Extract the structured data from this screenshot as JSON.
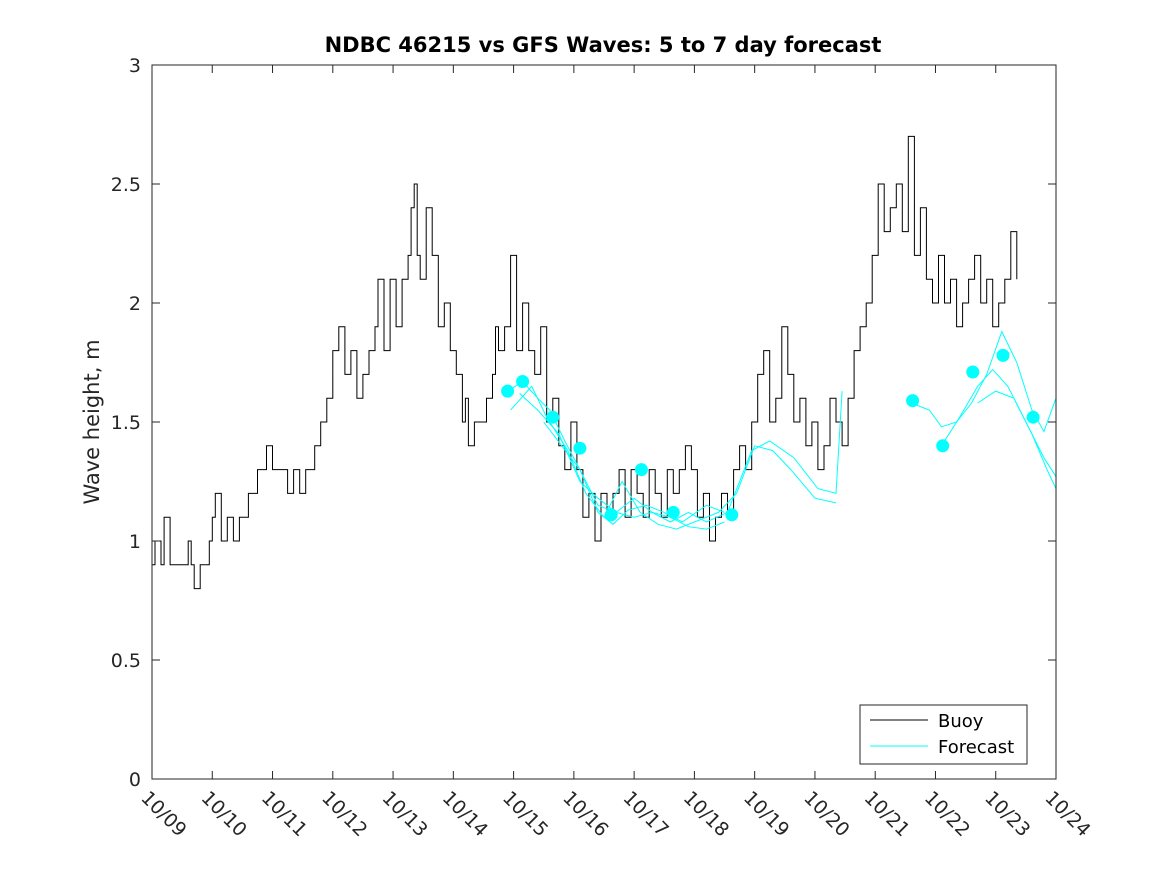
{
  "chart_data": {
    "type": "line",
    "title": "NDBC 46215 vs GFS Waves: 5 to 7 day forecast",
    "xlabel": "",
    "ylabel": "Wave height, m",
    "xlim": [
      0,
      15
    ],
    "ylim": [
      0,
      3
    ],
    "grid": false,
    "legend_position": "bottom-right",
    "x_ticks": [
      0,
      1,
      2,
      3,
      4,
      5,
      6,
      7,
      8,
      9,
      10,
      11,
      12,
      13,
      14,
      15
    ],
    "x_tick_labels": [
      "10/09",
      "10/10",
      "10/11",
      "10/12",
      "10/13",
      "10/14",
      "10/15",
      "10/16",
      "10/17",
      "10/18",
      "10/19",
      "10/20",
      "10/21",
      "10/22",
      "10/23",
      "10/24"
    ],
    "y_ticks": [
      0,
      0.5,
      1,
      1.5,
      2,
      2.5,
      3
    ],
    "y_tick_labels": [
      "0",
      "0.5",
      "1",
      "1.5",
      "2",
      "2.5",
      "3"
    ],
    "series": [
      {
        "name": "Buoy",
        "color": "#000000",
        "style": "step-line",
        "points": [
          [
            0.0,
            0.9
          ],
          [
            0.05,
            1.0
          ],
          [
            0.15,
            0.9
          ],
          [
            0.2,
            1.1
          ],
          [
            0.3,
            0.9
          ],
          [
            0.4,
            0.9
          ],
          [
            0.55,
            0.9
          ],
          [
            0.6,
            1.0
          ],
          [
            0.65,
            0.9
          ],
          [
            0.7,
            0.8
          ],
          [
            0.8,
            0.9
          ],
          [
            0.95,
            1.0
          ],
          [
            1.0,
            1.1
          ],
          [
            1.05,
            1.2
          ],
          [
            1.15,
            1.0
          ],
          [
            1.25,
            1.1
          ],
          [
            1.35,
            1.0
          ],
          [
            1.45,
            1.1
          ],
          [
            1.6,
            1.2
          ],
          [
            1.75,
            1.3
          ],
          [
            1.9,
            1.4
          ],
          [
            2.0,
            1.3
          ],
          [
            2.15,
            1.3
          ],
          [
            2.25,
            1.2
          ],
          [
            2.35,
            1.3
          ],
          [
            2.45,
            1.2
          ],
          [
            2.55,
            1.3
          ],
          [
            2.7,
            1.4
          ],
          [
            2.8,
            1.5
          ],
          [
            2.9,
            1.6
          ],
          [
            3.0,
            1.8
          ],
          [
            3.1,
            1.9
          ],
          [
            3.2,
            1.7
          ],
          [
            3.3,
            1.8
          ],
          [
            3.4,
            1.6
          ],
          [
            3.5,
            1.7
          ],
          [
            3.6,
            1.8
          ],
          [
            3.7,
            1.9
          ],
          [
            3.75,
            2.1
          ],
          [
            3.85,
            1.8
          ],
          [
            3.95,
            2.1
          ],
          [
            4.05,
            1.9
          ],
          [
            4.15,
            2.1
          ],
          [
            4.25,
            2.2
          ],
          [
            4.3,
            2.4
          ],
          [
            4.35,
            2.5
          ],
          [
            4.4,
            2.2
          ],
          [
            4.45,
            2.1
          ],
          [
            4.55,
            2.4
          ],
          [
            4.65,
            2.2
          ],
          [
            4.75,
            1.9
          ],
          [
            4.85,
            2.0
          ],
          [
            4.95,
            1.8
          ],
          [
            5.05,
            1.7
          ],
          [
            5.15,
            1.5
          ],
          [
            5.2,
            1.6
          ],
          [
            5.25,
            1.4
          ],
          [
            5.35,
            1.5
          ],
          [
            5.45,
            1.5
          ],
          [
            5.55,
            1.6
          ],
          [
            5.65,
            1.7
          ],
          [
            5.7,
            1.9
          ],
          [
            5.75,
            1.8
          ],
          [
            5.85,
            1.9
          ],
          [
            5.95,
            2.2
          ],
          [
            6.05,
            1.8
          ],
          [
            6.15,
            2.0
          ],
          [
            6.25,
            1.8
          ],
          [
            6.35,
            1.7
          ],
          [
            6.45,
            1.9
          ],
          [
            6.55,
            1.5
          ],
          [
            6.65,
            1.6
          ],
          [
            6.75,
            1.4
          ],
          [
            6.85,
            1.3
          ],
          [
            6.95,
            1.5
          ],
          [
            7.05,
            1.3
          ],
          [
            7.15,
            1.1
          ],
          [
            7.25,
            1.2
          ],
          [
            7.35,
            1.0
          ],
          [
            7.45,
            1.2
          ],
          [
            7.55,
            1.1
          ],
          [
            7.65,
            1.2
          ],
          [
            7.75,
            1.3
          ],
          [
            7.85,
            1.1
          ],
          [
            7.95,
            1.3
          ],
          [
            8.05,
            1.2
          ],
          [
            8.15,
            1.1
          ],
          [
            8.25,
            1.3
          ],
          [
            8.35,
            1.2
          ],
          [
            8.45,
            1.1
          ],
          [
            8.55,
            1.3
          ],
          [
            8.65,
            1.2
          ],
          [
            8.75,
            1.3
          ],
          [
            8.85,
            1.4
          ],
          [
            8.95,
            1.3
          ],
          [
            9.05,
            1.1
          ],
          [
            9.15,
            1.2
          ],
          [
            9.25,
            1.0
          ],
          [
            9.35,
            1.1
          ],
          [
            9.45,
            1.2
          ],
          [
            9.55,
            1.1
          ],
          [
            9.65,
            1.3
          ],
          [
            9.75,
            1.4
          ],
          [
            9.85,
            1.3
          ],
          [
            9.95,
            1.5
          ],
          [
            10.05,
            1.7
          ],
          [
            10.15,
            1.8
          ],
          [
            10.25,
            1.5
          ],
          [
            10.35,
            1.6
          ],
          [
            10.45,
            1.9
          ],
          [
            10.55,
            1.7
          ],
          [
            10.65,
            1.5
          ],
          [
            10.75,
            1.6
          ],
          [
            10.85,
            1.4
          ],
          [
            10.95,
            1.5
          ],
          [
            11.05,
            1.3
          ],
          [
            11.15,
            1.4
          ],
          [
            11.25,
            1.6
          ],
          [
            11.35,
            1.5
          ],
          [
            11.45,
            1.4
          ],
          [
            11.55,
            1.6
          ],
          [
            11.65,
            1.8
          ],
          [
            11.75,
            1.9
          ],
          [
            11.85,
            2.0
          ],
          [
            11.95,
            2.2
          ],
          [
            12.05,
            2.5
          ],
          [
            12.15,
            2.3
          ],
          [
            12.25,
            2.4
          ],
          [
            12.35,
            2.5
          ],
          [
            12.45,
            2.3
          ],
          [
            12.55,
            2.7
          ],
          [
            12.65,
            2.2
          ],
          [
            12.75,
            2.4
          ],
          [
            12.85,
            2.1
          ],
          [
            12.95,
            2.0
          ],
          [
            13.05,
            2.2
          ],
          [
            13.15,
            2.0
          ],
          [
            13.25,
            2.1
          ],
          [
            13.35,
            1.9
          ],
          [
            13.45,
            2.0
          ],
          [
            13.55,
            2.1
          ],
          [
            13.65,
            2.2
          ],
          [
            13.75,
            2.0
          ],
          [
            13.85,
            2.1
          ],
          [
            13.95,
            1.9
          ],
          [
            14.05,
            2.0
          ],
          [
            14.15,
            2.1
          ],
          [
            14.25,
            2.3
          ],
          [
            14.35,
            2.1
          ]
        ]
      },
      {
        "name": "Forecast",
        "color": "#00ffff",
        "style": "lines",
        "lines": [
          [
            [
              5.9,
              1.63
            ],
            [
              6.15,
              1.67
            ],
            [
              6.4,
              1.6
            ],
            [
              6.6,
              1.55
            ],
            [
              6.85,
              1.42
            ],
            [
              7.1,
              1.3
            ],
            [
              7.4,
              1.12
            ],
            [
              7.65,
              1.07
            ],
            [
              7.9,
              1.13
            ],
            [
              8.2,
              1.15
            ],
            [
              8.5,
              1.12
            ],
            [
              8.8,
              1.08
            ],
            [
              9.2,
              1.15
            ],
            [
              9.5,
              1.12
            ]
          ],
          [
            [
              5.95,
              1.55
            ],
            [
              6.3,
              1.65
            ],
            [
              6.55,
              1.52
            ],
            [
              6.9,
              1.38
            ],
            [
              7.2,
              1.2
            ],
            [
              7.5,
              1.1
            ],
            [
              7.8,
              1.25
            ],
            [
              8.1,
              1.12
            ],
            [
              8.4,
              1.07
            ],
            [
              8.7,
              1.05
            ],
            [
              9.0,
              1.08
            ],
            [
              9.4,
              1.12
            ],
            [
              9.7,
              1.2
            ],
            [
              10.0,
              1.4
            ],
            [
              10.3,
              1.38
            ],
            [
              10.6,
              1.3
            ],
            [
              11.0,
              1.18
            ],
            [
              11.35,
              1.16
            ]
          ],
          [
            [
              6.1,
              1.62
            ],
            [
              6.4,
              1.55
            ],
            [
              6.75,
              1.45
            ],
            [
              7.1,
              1.25
            ],
            [
              7.4,
              1.18
            ],
            [
              7.7,
              1.12
            ],
            [
              8.0,
              1.1
            ],
            [
              8.3,
              1.12
            ],
            [
              8.6,
              1.08
            ],
            [
              8.9,
              1.12
            ],
            [
              9.2,
              1.08
            ],
            [
              9.55,
              1.12
            ],
            [
              9.95,
              1.38
            ],
            [
              10.25,
              1.42
            ],
            [
              10.65,
              1.35
            ],
            [
              11.05,
              1.22
            ],
            [
              11.35,
              1.2
            ],
            [
              11.45,
              1.63
            ]
          ],
          [
            [
              6.5,
              1.5
            ],
            [
              6.8,
              1.4
            ],
            [
              7.1,
              1.3
            ],
            [
              7.4,
              1.15
            ],
            [
              7.7,
              1.12
            ],
            [
              8.0,
              1.18
            ],
            [
              8.3,
              1.12
            ],
            [
              8.6,
              1.1
            ],
            [
              8.9,
              1.06
            ],
            [
              9.2,
              1.05
            ],
            [
              9.5,
              1.08
            ]
          ],
          [
            [
              12.6,
              1.58
            ],
            [
              12.9,
              1.55
            ],
            [
              13.1,
              1.48
            ],
            [
              13.35,
              1.5
            ],
            [
              13.6,
              1.58
            ],
            [
              13.85,
              1.7
            ],
            [
              14.1,
              1.88
            ],
            [
              14.35,
              1.75
            ],
            [
              14.6,
              1.55
            ],
            [
              14.8,
              1.46
            ],
            [
              15.0,
              1.6
            ]
          ],
          [
            [
              13.1,
              1.4
            ],
            [
              13.4,
              1.52
            ],
            [
              13.7,
              1.65
            ],
            [
              13.95,
              1.72
            ],
            [
              14.2,
              1.65
            ],
            [
              14.5,
              1.5
            ],
            [
              14.8,
              1.35
            ],
            [
              15.0,
              1.27
            ]
          ],
          [
            [
              13.7,
              1.58
            ],
            [
              14.0,
              1.63
            ],
            [
              14.3,
              1.6
            ],
            [
              14.6,
              1.45
            ],
            [
              14.85,
              1.3
            ],
            [
              15.0,
              1.22
            ]
          ]
        ],
        "markers": [
          [
            5.9,
            1.63
          ],
          [
            6.15,
            1.67
          ],
          [
            6.65,
            1.52
          ],
          [
            7.1,
            1.39
          ],
          [
            7.62,
            1.11
          ],
          [
            8.12,
            1.3
          ],
          [
            8.65,
            1.12
          ],
          [
            9.62,
            1.11
          ],
          [
            12.62,
            1.59
          ],
          [
            13.12,
            1.4
          ],
          [
            13.62,
            1.71
          ],
          [
            14.12,
            1.78
          ],
          [
            14.62,
            1.52
          ]
        ]
      }
    ]
  }
}
